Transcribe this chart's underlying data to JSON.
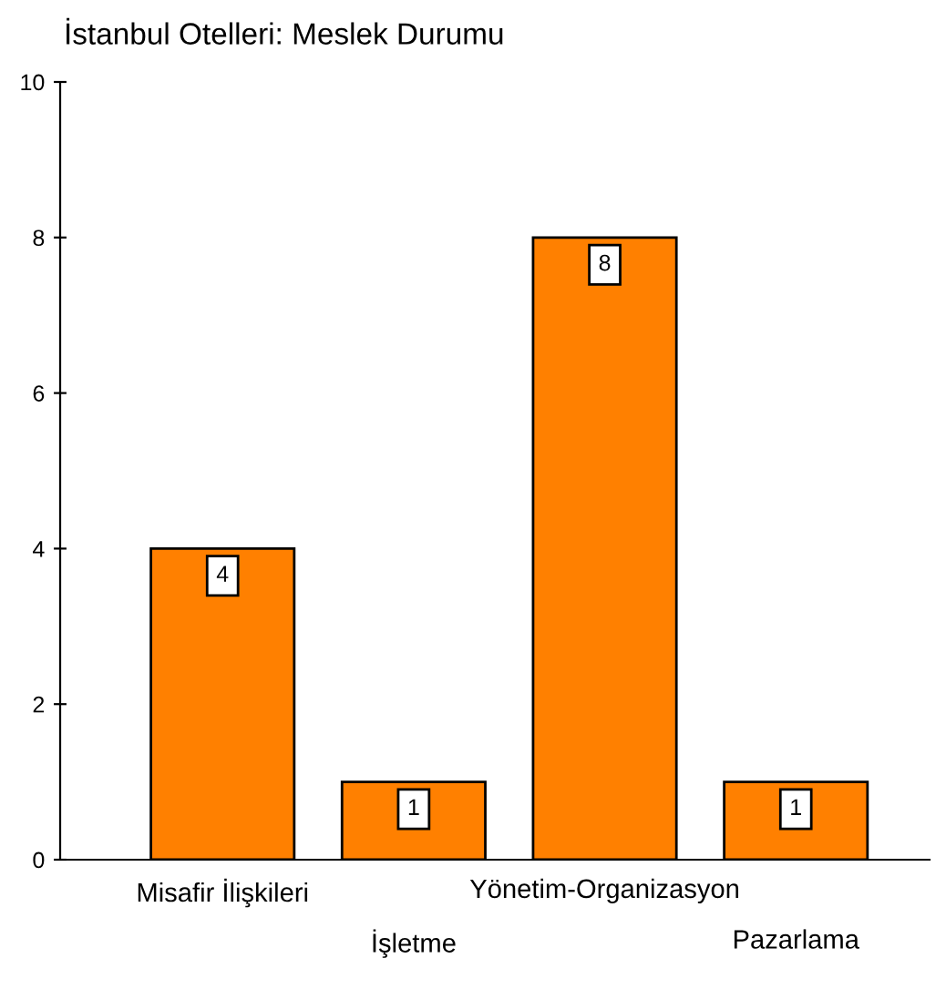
{
  "chart_data": {
    "type": "bar",
    "title": "İstanbul Otelleri: Meslek Durumu",
    "categories": [
      "Misafir İlişkileri",
      "İşletme",
      "Yönetim-Organizasyon",
      "Pazarlama"
    ],
    "values": [
      4,
      1,
      8,
      1
    ],
    "color": "#ff8000",
    "ylim": [
      0,
      10
    ],
    "yticks": [
      0,
      2,
      4,
      6,
      8,
      10
    ],
    "grid": false,
    "data_labels": true
  }
}
